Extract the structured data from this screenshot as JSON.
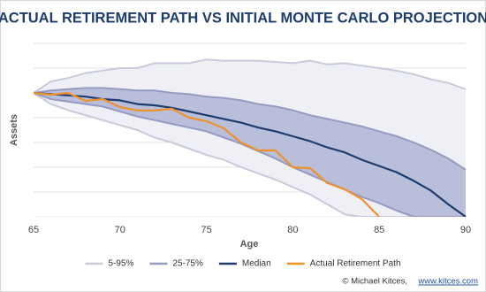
{
  "chart_data": {
    "type": "fan",
    "title": "ACTUAL RETIREMENT PATH VS INITIAL MONTE CARLO PROJECTION",
    "x_label": "Age",
    "y_label": "Assets",
    "x": [
      65,
      66,
      67,
      68,
      69,
      70,
      71,
      72,
      73,
      74,
      75,
      76,
      77,
      78,
      79,
      80,
      81,
      82,
      83,
      84,
      85,
      86,
      87,
      88,
      89,
      90
    ],
    "xlim": [
      65,
      90
    ],
    "xticks": [
      65,
      70,
      75,
      80,
      85,
      90
    ],
    "ylim": [
      0,
      7
    ],
    "yticks": [
      0,
      1,
      2,
      3,
      4,
      5,
      6,
      7
    ],
    "show_ytick_labels": false,
    "grid": true,
    "legend": "bottom",
    "series": [
      {
        "name": "5-95%",
        "kind": "band",
        "color": "#c9cadb",
        "fill": "#eff0f6",
        "upper": [
          5.0,
          5.46,
          5.6,
          5.8,
          5.9,
          6.0,
          6.0,
          6.2,
          6.2,
          6.2,
          6.35,
          6.3,
          6.3,
          6.3,
          6.25,
          6.2,
          6.3,
          6.15,
          6.2,
          6.1,
          6.0,
          5.9,
          5.75,
          5.55,
          5.4,
          5.15
        ],
        "lower": [
          5.0,
          4.55,
          4.3,
          4.1,
          3.9,
          3.7,
          3.5,
          3.2,
          3.0,
          2.75,
          2.5,
          2.3,
          2.0,
          1.75,
          1.5,
          1.2,
          0.9,
          0.5,
          0.1,
          0,
          0,
          0,
          0,
          0,
          0,
          0
        ]
      },
      {
        "name": "25-75%",
        "kind": "band",
        "color": "#959bc0",
        "fill": "#b9bedb",
        "upper": [
          5.0,
          5.1,
          5.15,
          5.2,
          5.2,
          5.15,
          5.1,
          5.1,
          5.0,
          4.95,
          4.85,
          4.8,
          4.7,
          4.55,
          4.45,
          4.3,
          4.1,
          3.95,
          3.8,
          3.65,
          3.45,
          3.25,
          3.0,
          2.7,
          2.35,
          1.9
        ],
        "lower": [
          5.0,
          4.75,
          4.65,
          4.55,
          4.45,
          4.25,
          4.05,
          3.9,
          3.75,
          3.6,
          3.45,
          3.2,
          2.95,
          2.65,
          2.35,
          2.0,
          1.7,
          1.4,
          1.1,
          0.8,
          0.55,
          0.25,
          0,
          0,
          0,
          0
        ]
      },
      {
        "name": "Median",
        "kind": "line",
        "color": "#1d3d6e",
        "values": [
          5.0,
          4.95,
          4.9,
          4.85,
          4.75,
          4.7,
          4.55,
          4.5,
          4.4,
          4.25,
          4.1,
          3.95,
          3.8,
          3.6,
          3.45,
          3.25,
          3.05,
          2.8,
          2.6,
          2.3,
          2.05,
          1.8,
          1.45,
          1.05,
          0.5,
          0
        ]
      },
      {
        "name": "Actual Retirement Path",
        "kind": "line",
        "color": "#f0922c",
        "x": [
          65,
          66,
          67,
          68,
          69,
          70,
          71,
          72,
          73,
          74,
          75,
          76,
          77,
          78,
          79,
          80,
          81,
          82,
          83,
          84,
          85
        ],
        "values": [
          5.0,
          4.93,
          5.0,
          4.68,
          4.75,
          4.43,
          4.29,
          4.29,
          4.36,
          4.0,
          3.86,
          3.57,
          3.0,
          2.68,
          2.68,
          2.0,
          1.96,
          1.36,
          1.11,
          0.71,
          0
        ]
      }
    ],
    "credit": "© Michael Kitces,",
    "credit_link": "www.kitces.com"
  }
}
